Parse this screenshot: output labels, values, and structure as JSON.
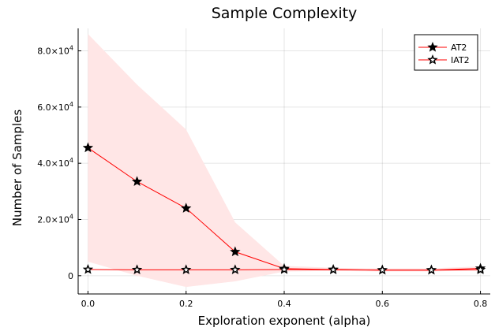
{
  "chart_data": {
    "type": "line",
    "title": "Sample Complexity",
    "xlabel": "Exploration exponent (alpha)",
    "ylabel": "Number of Samples",
    "xlim": [
      -0.02,
      0.82
    ],
    "ylim": [
      -6500,
      88000
    ],
    "x_ticks": [
      0.0,
      0.2,
      0.4,
      0.6,
      0.8
    ],
    "x_tick_labels": [
      "0.0",
      "0.2",
      "0.4",
      "0.6",
      "0.8"
    ],
    "y_ticks": [
      0,
      20000,
      40000,
      60000,
      80000
    ],
    "y_tick_labels": [
      {
        "base": "0",
        "exp": ""
      },
      {
        "base": "2.0×10",
        "exp": "4"
      },
      {
        "base": "4.0×10",
        "exp": "4"
      },
      {
        "base": "6.0×10",
        "exp": "4"
      },
      {
        "base": "8.0×10",
        "exp": "4"
      }
    ],
    "grid": true,
    "legend_position": "top-right",
    "x": [
      0.0,
      0.1,
      0.2,
      0.3,
      0.4,
      0.5,
      0.6,
      0.7,
      0.8
    ],
    "series": [
      {
        "name": "AT2",
        "color": "#ff0000",
        "marker": "filled-star",
        "values": [
          45500,
          33500,
          24000,
          8500,
          2500,
          2200,
          2000,
          2000,
          2600
        ],
        "band_upper": [
          86000,
          68000,
          52000,
          19000,
          3500,
          2800,
          2600,
          2600,
          3300
        ],
        "band_lower": [
          5000,
          0,
          -4000,
          -2000,
          1500,
          1700,
          1500,
          1500,
          1900
        ],
        "band_color": "#ffe6e6"
      },
      {
        "name": "IAT2",
        "color": "#ff0000",
        "marker": "hollow-star",
        "values": [
          2200,
          2100,
          2100,
          2100,
          2200,
          2100,
          2000,
          2000,
          2100
        ]
      }
    ]
  }
}
